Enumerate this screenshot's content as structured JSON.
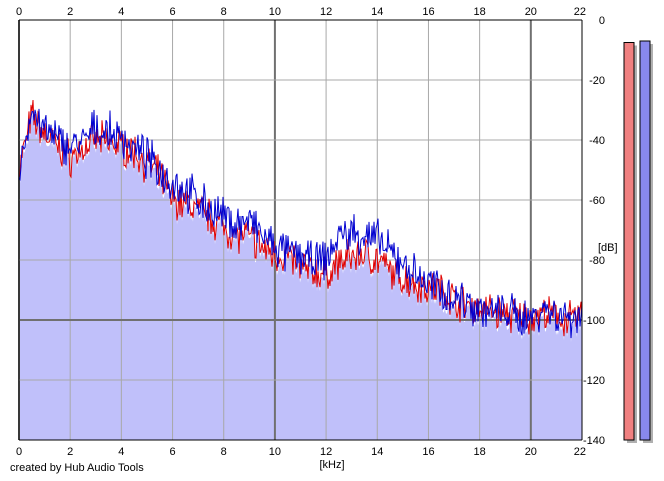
{
  "credit": "created by Hub Audio Tools",
  "chart_data": {
    "type": "area",
    "title": "",
    "xlabel": "[kHz]",
    "ylabel": "[dB]",
    "xlim": [
      0,
      22
    ],
    "ylim": [
      -140,
      0
    ],
    "x_ticks": [
      0,
      2,
      4,
      6,
      8,
      10,
      12,
      14,
      16,
      18,
      20,
      22
    ],
    "y_ticks": [
      0,
      -20,
      -40,
      -60,
      -80,
      -100,
      -120,
      -140
    ],
    "grid": true,
    "colors": {
      "fill": "#c0c0fa",
      "left": "#e00000",
      "right": "#0000d0",
      "left_meter": "#f08080",
      "right_meter": "#8888ee"
    },
    "x": [
      0,
      0.5,
      1,
      1.5,
      2,
      2.5,
      3,
      3.5,
      4,
      4.5,
      5,
      5.5,
      6,
      6.5,
      7,
      7.5,
      8,
      8.5,
      9,
      9.5,
      10,
      10.5,
      11,
      11.5,
      12,
      12.5,
      13,
      13.5,
      14,
      14.5,
      15,
      15.5,
      16,
      16.5,
      17,
      17.5,
      18,
      18.5,
      19,
      19.5,
      20,
      20.5,
      21,
      21.5,
      22
    ],
    "series": [
      {
        "values": [
          -50,
          -32,
          -38,
          -42,
          -46,
          -43,
          -40,
          -41,
          -42,
          -44,
          -48,
          -52,
          -60,
          -61,
          -63,
          -66,
          -69,
          -72,
          -72,
          -76,
          -78,
          -79,
          -82,
          -84,
          -85,
          -81,
          -79,
          -78,
          -80,
          -84,
          -86,
          -88,
          -89,
          -90,
          -93,
          -95,
          -96,
          -97,
          -98,
          -99,
          -99,
          -98,
          -99,
          -100,
          -99
        ]
      },
      {
        "values": [
          -50,
          -30,
          -37,
          -40,
          -42,
          -41,
          -36,
          -38,
          -39,
          -43,
          -46,
          -50,
          -54,
          -57,
          -60,
          -63,
          -66,
          -68,
          -67,
          -72,
          -76,
          -78,
          -78,
          -81,
          -80,
          -72,
          -71,
          -72,
          -73,
          -78,
          -81,
          -85,
          -88,
          -90,
          -92,
          -94,
          -96,
          -98,
          -97,
          -99,
          -99,
          -96,
          -98,
          -99,
          -98
        ]
      }
    ],
    "meters": {
      "left_top": -7.5,
      "right_top": -7
    }
  }
}
